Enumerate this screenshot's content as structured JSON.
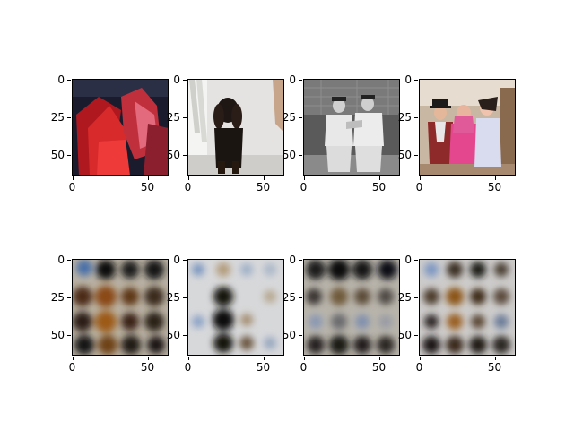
{
  "axis": {
    "y_ticks": [
      "0",
      "25",
      "50"
    ],
    "x_ticks": [
      "0",
      "50"
    ]
  },
  "rows": [
    {
      "row": "input images",
      "panels": [
        {
          "desc": "red and pink garments"
        },
        {
          "desc": "black dog in white room"
        },
        {
          "desc": "two baseball players black-and-white"
        },
        {
          "desc": "three people in costumes"
        }
      ]
    },
    {
      "row": "reconstructions",
      "panels": [
        {
          "desc": "blurry dark blob grid"
        },
        {
          "desc": "light blurry pattern with dark column"
        },
        {
          "desc": "dark blurry grid"
        },
        {
          "desc": "light blurry grid with dark spots"
        }
      ]
    }
  ]
}
